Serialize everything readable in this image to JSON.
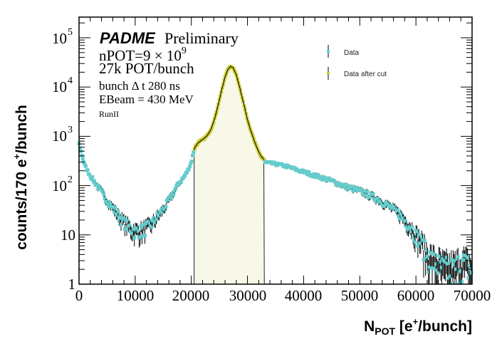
{
  "chart_data": {
    "type": "scatter",
    "title": "",
    "xlabel": "N_POT [e+/bunch]",
    "xlabel_main": "N",
    "xlabel_sub": "POT",
    "xlabel_rest_a": " [e",
    "xlabel_sup": "+",
    "xlabel_rest_b": "/bunch]",
    "ylabel": "counts/170 e+/bunch",
    "ylabel_a": "counts/170 e",
    "ylabel_sup": "+",
    "ylabel_b": "/bunch",
    "xlim": [
      0,
      70000
    ],
    "ylim": [
      1,
      260000
    ],
    "yscale": "log",
    "grid": false,
    "x_ticks": [
      0,
      10000,
      20000,
      30000,
      40000,
      50000,
      60000,
      70000
    ],
    "x_tick_labels": [
      "0",
      "10000",
      "20000",
      "30000",
      "40000",
      "50000",
      "60000",
      "70000"
    ],
    "y_ticks": [
      1,
      10,
      100,
      1000,
      10000,
      100000
    ],
    "y_tick_labels": [
      {
        "base": "1",
        "exp": ""
      },
      {
        "base": "10",
        "exp": ""
      },
      {
        "base": "10",
        "exp": "2"
      },
      {
        "base": "10",
        "exp": "3"
      },
      {
        "base": "10",
        "exp": "4"
      },
      {
        "base": "10",
        "exp": "5"
      }
    ],
    "legend_position": "top-right",
    "annotations": {
      "experiment": "PADME",
      "status": "Preliminary",
      "npot_a": "nPOT=9 × 10",
      "npot_exp": "9",
      "pot_per_bunch": "27k POT/bunch",
      "bunch_dt": "bunch Δ t 280 ns",
      "ebeam": "EBeam = 430 MeV",
      "run": "RunII"
    },
    "cut_range": [
      20500,
      33000
    ],
    "series": [
      {
        "name": "Data",
        "color": "#66cccc",
        "points": [
          [
            0,
            700
          ],
          [
            500,
            420
          ],
          [
            1000,
            260
          ],
          [
            1500,
            200
          ],
          [
            2000,
            160
          ],
          [
            2500,
            130
          ],
          [
            3000,
            110
          ],
          [
            3500,
            90
          ],
          [
            4000,
            75
          ],
          [
            4500,
            60
          ],
          [
            5000,
            50
          ],
          [
            5500,
            42
          ],
          [
            6000,
            36
          ],
          [
            6500,
            30
          ],
          [
            7000,
            25
          ],
          [
            7500,
            21
          ],
          [
            8000,
            18
          ],
          [
            8500,
            16
          ],
          [
            9000,
            14
          ],
          [
            9500,
            13
          ],
          [
            10000,
            12
          ],
          [
            10500,
            12
          ],
          [
            11000,
            12
          ],
          [
            11500,
            13
          ],
          [
            12000,
            14
          ],
          [
            12500,
            15
          ],
          [
            13000,
            17
          ],
          [
            13500,
            20
          ],
          [
            14000,
            24
          ],
          [
            14500,
            28
          ],
          [
            15000,
            33
          ],
          [
            15500,
            40
          ],
          [
            16000,
            50
          ],
          [
            16500,
            62
          ],
          [
            17000,
            78
          ],
          [
            17500,
            100
          ],
          [
            18000,
            120
          ],
          [
            18500,
            140
          ],
          [
            19000,
            170
          ],
          [
            19500,
            220
          ],
          [
            20000,
            300
          ],
          [
            20500,
            550
          ],
          [
            33000,
            300
          ],
          [
            33500,
            290
          ],
          [
            34000,
            285
          ],
          [
            35000,
            275
          ],
          [
            36000,
            260
          ],
          [
            37000,
            245
          ],
          [
            38000,
            225
          ],
          [
            39000,
            205
          ],
          [
            40000,
            190
          ],
          [
            41000,
            175
          ],
          [
            42000,
            160
          ],
          [
            43000,
            150
          ],
          [
            44000,
            135
          ],
          [
            45000,
            125
          ],
          [
            46000,
            112
          ],
          [
            47000,
            100
          ],
          [
            48000,
            92
          ],
          [
            49000,
            85
          ],
          [
            50000,
            78
          ],
          [
            51000,
            70
          ],
          [
            52000,
            62
          ],
          [
            53000,
            55
          ],
          [
            54000,
            47
          ],
          [
            55000,
            40
          ],
          [
            56000,
            33
          ],
          [
            57000,
            27
          ],
          [
            58000,
            20
          ],
          [
            59000,
            15
          ],
          [
            60000,
            10
          ],
          [
            61000,
            7
          ],
          [
            62000,
            4
          ],
          [
            63000,
            3
          ],
          [
            64000,
            2.5
          ],
          [
            65000,
            2
          ],
          [
            66000,
            2
          ],
          [
            67000,
            2
          ],
          [
            68000,
            3
          ],
          [
            69000,
            2.5
          ],
          [
            70000,
            2
          ]
        ]
      },
      {
        "name": "Data after cut",
        "color": "#cccc33",
        "points": [
          [
            20500,
            550
          ],
          [
            21000,
            700
          ],
          [
            21500,
            780
          ],
          [
            22000,
            850
          ],
          [
            22500,
            950
          ],
          [
            23000,
            1100
          ],
          [
            23500,
            1400
          ],
          [
            24000,
            2000
          ],
          [
            24500,
            3200
          ],
          [
            25000,
            5500
          ],
          [
            25500,
            9500
          ],
          [
            26000,
            16000
          ],
          [
            26500,
            23000
          ],
          [
            27000,
            26000
          ],
          [
            27500,
            24000
          ],
          [
            28000,
            18000
          ],
          [
            28500,
            11000
          ],
          [
            29000,
            6500
          ],
          [
            29500,
            3800
          ],
          [
            30000,
            2200
          ],
          [
            30500,
            1400
          ],
          [
            31000,
            950
          ],
          [
            31500,
            650
          ],
          [
            32000,
            480
          ],
          [
            32500,
            380
          ],
          [
            33000,
            330
          ]
        ]
      }
    ]
  }
}
